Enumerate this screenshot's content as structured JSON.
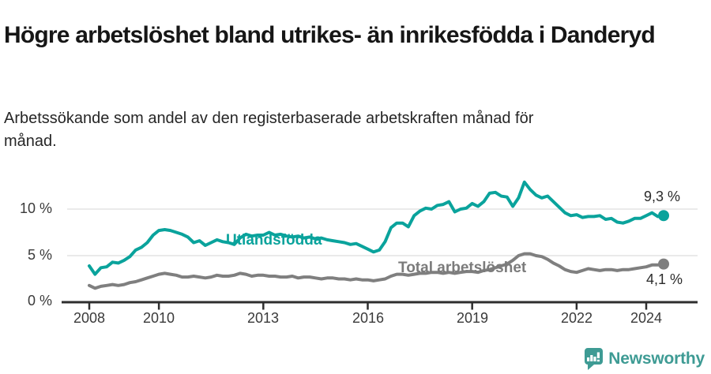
{
  "header": {
    "title": "Högre arbetslöshet bland utrikes- än inrikesfödda i Danderyd",
    "subtitle": "Arbetssökande som andel av den registerbaserade arbetskraften månad för månad."
  },
  "footer": {
    "brand_name": "Newsworthy",
    "logo_icon": "speech-bubble-bar-chart-icon",
    "brand_color": "#3e9b94"
  },
  "colors": {
    "foreign_born_line": "#0aa39c",
    "total_line": "#7f7f7f",
    "axis": "#2e2e2e",
    "gridline": "#e4e4e4",
    "tick_text": "#3a3a3a",
    "value_text": "#2b2b2b"
  },
  "chart_data": {
    "type": "line",
    "title": "Högre arbetslöshet bland utrikes- än inrikesfödda i Danderyd",
    "subtitle": "Arbetssökande som andel av den registerbaserade arbetskraften månad för månad.",
    "unit": "%",
    "x_axis": {
      "start": 2008.0,
      "step_years": 0.16667,
      "end": 2024.5,
      "ticks": [
        {
          "value": 2008,
          "label": "2008"
        },
        {
          "value": 2010,
          "label": "2010"
        },
        {
          "value": 2013,
          "label": "2013"
        },
        {
          "value": 2016,
          "label": "2016"
        },
        {
          "value": 2019,
          "label": "2019"
        },
        {
          "value": 2022,
          "label": "2022"
        },
        {
          "value": 2024,
          "label": "2024"
        }
      ]
    },
    "y_axis": {
      "min": 0,
      "max": 13.5,
      "ticks": [
        {
          "value": 0,
          "label": "0 %"
        },
        {
          "value": 5,
          "label": "5 %"
        },
        {
          "value": 10,
          "label": "10 %"
        }
      ],
      "grid": true
    },
    "legend_position": "inline-labels",
    "series": [
      {
        "id": "utlandsfodda",
        "label": "Utlandsfödda",
        "color": "#0aa39c",
        "end_value": 9.3,
        "end_value_label": "9,3 %",
        "values": [
          3.9,
          3.0,
          3.7,
          3.8,
          4.3,
          4.2,
          4.5,
          4.9,
          5.6,
          5.9,
          6.4,
          7.2,
          7.7,
          7.8,
          7.7,
          7.5,
          7.3,
          7.0,
          6.4,
          6.6,
          6.1,
          6.4,
          6.7,
          6.5,
          6.4,
          6.2,
          6.9,
          7.3,
          7.1,
          7.2,
          7.2,
          7.5,
          7.2,
          7.3,
          7.1,
          7.0,
          7.1,
          6.9,
          7.0,
          6.8,
          6.9,
          6.7,
          6.6,
          6.5,
          6.4,
          6.2,
          6.3,
          6.0,
          5.7,
          5.4,
          5.6,
          6.5,
          8.0,
          8.5,
          8.5,
          8.1,
          9.3,
          9.8,
          10.1,
          10.0,
          10.4,
          10.5,
          10.8,
          9.7,
          10.0,
          10.1,
          10.6,
          10.3,
          10.8,
          11.7,
          11.8,
          11.4,
          11.3,
          10.3,
          11.2,
          12.9,
          12.1,
          11.5,
          11.2,
          11.4,
          10.8,
          10.2,
          9.6,
          9.3,
          9.4,
          9.1,
          9.2,
          9.2,
          9.3,
          8.9,
          9.0,
          8.6,
          8.5,
          8.7,
          9.0,
          9.0,
          9.3,
          9.6,
          9.2,
          9.3
        ]
      },
      {
        "id": "total",
        "label": "Total arbetslöshet",
        "color": "#7f7f7f",
        "end_value": 4.1,
        "end_value_label": "4,1 %",
        "values": [
          1.8,
          1.5,
          1.7,
          1.8,
          1.9,
          1.8,
          1.9,
          2.1,
          2.2,
          2.4,
          2.6,
          2.8,
          3.0,
          3.1,
          3.0,
          2.9,
          2.7,
          2.7,
          2.8,
          2.7,
          2.6,
          2.7,
          2.9,
          2.8,
          2.8,
          2.9,
          3.1,
          3.0,
          2.8,
          2.9,
          2.9,
          2.8,
          2.8,
          2.7,
          2.7,
          2.8,
          2.6,
          2.7,
          2.7,
          2.6,
          2.5,
          2.6,
          2.6,
          2.5,
          2.5,
          2.4,
          2.5,
          2.4,
          2.4,
          2.3,
          2.4,
          2.5,
          2.8,
          3.0,
          3.0,
          2.9,
          3.0,
          3.1,
          3.1,
          3.2,
          3.2,
          3.1,
          3.2,
          3.1,
          3.2,
          3.3,
          3.3,
          3.2,
          3.4,
          3.5,
          3.7,
          3.9,
          4.1,
          4.5,
          5.0,
          5.2,
          5.2,
          5.0,
          4.9,
          4.6,
          4.2,
          3.9,
          3.5,
          3.3,
          3.2,
          3.4,
          3.6,
          3.5,
          3.4,
          3.5,
          3.5,
          3.4,
          3.5,
          3.5,
          3.6,
          3.7,
          3.8,
          4.0,
          4.0,
          4.1
        ]
      }
    ]
  }
}
